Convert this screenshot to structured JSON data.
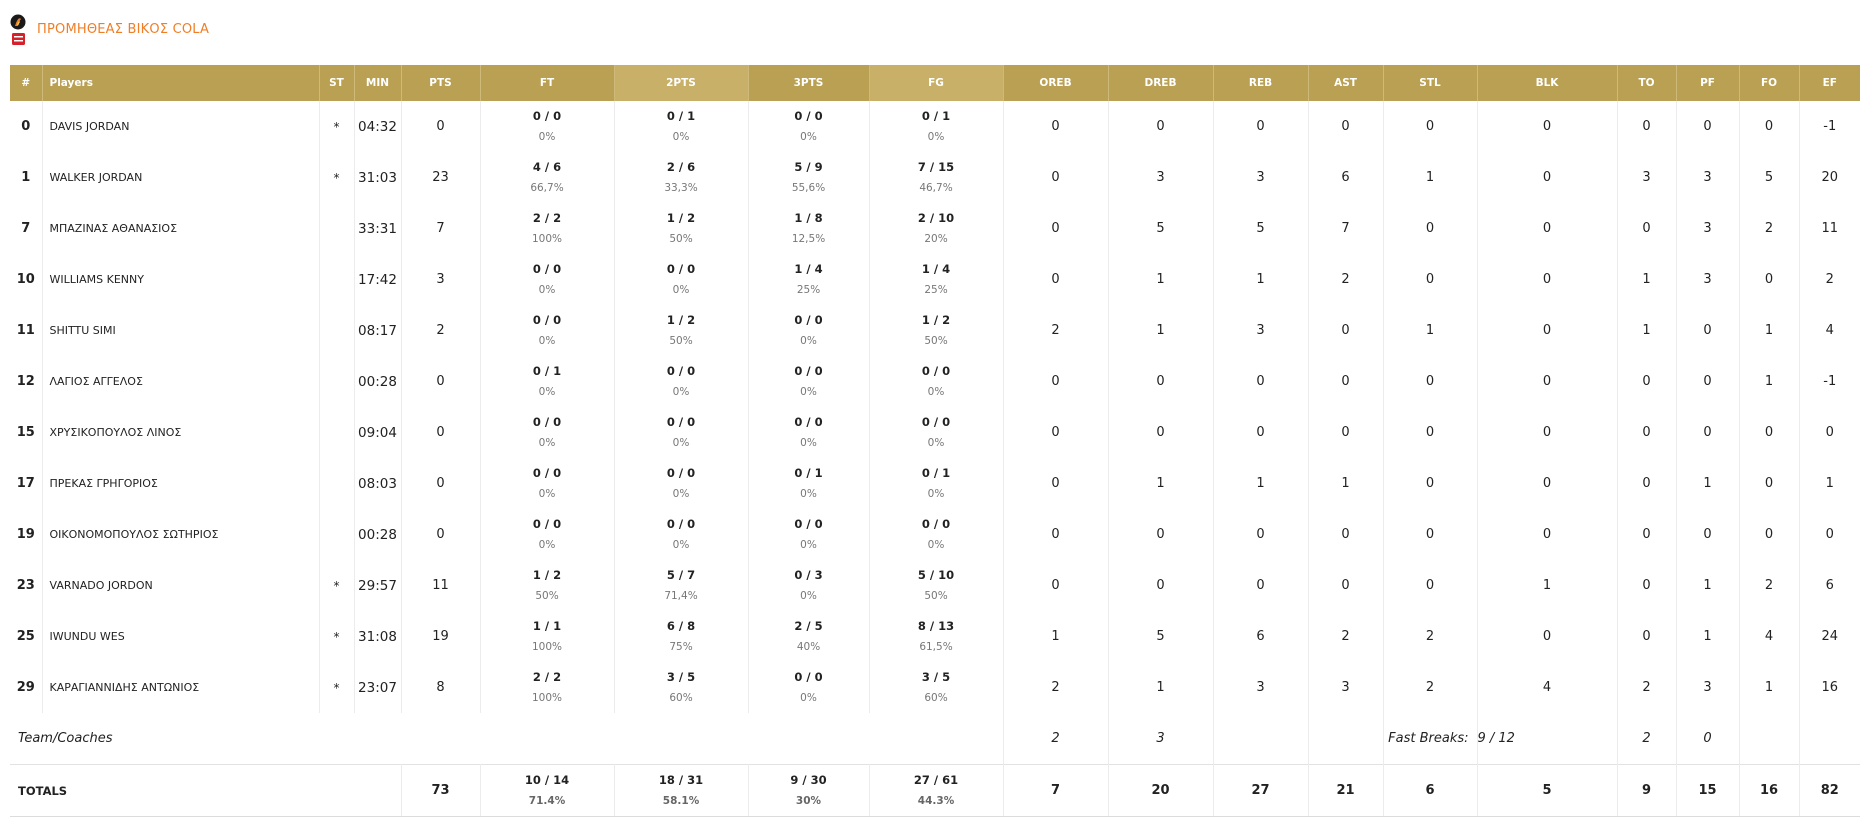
{
  "team": {
    "name": "ΠΡΟΜΗΘΕΑΣ ΒΙΚΟΣ COLA",
    "logo_icon": "team-logo-icon"
  },
  "colors": {
    "header_bg": "#b9a053",
    "header_alt_bg": "#c8b068",
    "team_name": "#f07e26"
  },
  "columns": [
    "#",
    "Players",
    "ST",
    "MIN",
    "PTS",
    "FT",
    "2PTS",
    "3PTS",
    "FG",
    "OREB",
    "DREB",
    "REB",
    "AST",
    "STL",
    "BLK",
    "TO",
    "PF",
    "FO",
    "EF"
  ],
  "players": [
    {
      "num": "0",
      "name": "DAVIS JORDAN",
      "st": "*",
      "min": "04:32",
      "pts": "0",
      "ft": "0 / 0",
      "ft_pct": "0%",
      "p2": "0 / 1",
      "p2_pct": "0%",
      "p3": "0 / 0",
      "p3_pct": "0%",
      "fg": "0 / 1",
      "fg_pct": "0%",
      "oreb": "0",
      "dreb": "0",
      "reb": "0",
      "ast": "0",
      "stl": "0",
      "blk": "0",
      "to": "0",
      "pf": "0",
      "fo": "0",
      "ef": "-1"
    },
    {
      "num": "1",
      "name": "WALKER JORDAN",
      "st": "*",
      "min": "31:03",
      "pts": "23",
      "ft": "4 / 6",
      "ft_pct": "66,7%",
      "p2": "2 / 6",
      "p2_pct": "33,3%",
      "p3": "5 / 9",
      "p3_pct": "55,6%",
      "fg": "7 / 15",
      "fg_pct": "46,7%",
      "oreb": "0",
      "dreb": "3",
      "reb": "3",
      "ast": "6",
      "stl": "1",
      "blk": "0",
      "to": "3",
      "pf": "3",
      "fo": "5",
      "ef": "20"
    },
    {
      "num": "7",
      "name": "ΜΠΑΖΙΝΑΣ ΑΘΑΝΑΣΙΟΣ",
      "st": "",
      "min": "33:31",
      "pts": "7",
      "ft": "2 / 2",
      "ft_pct": "100%",
      "p2": "1 / 2",
      "p2_pct": "50%",
      "p3": "1 / 8",
      "p3_pct": "12,5%",
      "fg": "2 / 10",
      "fg_pct": "20%",
      "oreb": "0",
      "dreb": "5",
      "reb": "5",
      "ast": "7",
      "stl": "0",
      "blk": "0",
      "to": "0",
      "pf": "3",
      "fo": "2",
      "ef": "11"
    },
    {
      "num": "10",
      "name": "WILLIAMS KENNY",
      "st": "",
      "min": "17:42",
      "pts": "3",
      "ft": "0 / 0",
      "ft_pct": "0%",
      "p2": "0 / 0",
      "p2_pct": "0%",
      "p3": "1 / 4",
      "p3_pct": "25%",
      "fg": "1 / 4",
      "fg_pct": "25%",
      "oreb": "0",
      "dreb": "1",
      "reb": "1",
      "ast": "2",
      "stl": "0",
      "blk": "0",
      "to": "1",
      "pf": "3",
      "fo": "0",
      "ef": "2"
    },
    {
      "num": "11",
      "name": "SHITTU SIMI",
      "st": "",
      "min": "08:17",
      "pts": "2",
      "ft": "0 / 0",
      "ft_pct": "0%",
      "p2": "1 / 2",
      "p2_pct": "50%",
      "p3": "0 / 0",
      "p3_pct": "0%",
      "fg": "1 / 2",
      "fg_pct": "50%",
      "oreb": "2",
      "dreb": "1",
      "reb": "3",
      "ast": "0",
      "stl": "1",
      "blk": "0",
      "to": "1",
      "pf": "0",
      "fo": "1",
      "ef": "4"
    },
    {
      "num": "12",
      "name": "ΛΑΓΙΟΣ ΑΓΓΕΛΟΣ",
      "st": "",
      "min": "00:28",
      "pts": "0",
      "ft": "0 / 1",
      "ft_pct": "0%",
      "p2": "0 / 0",
      "p2_pct": "0%",
      "p3": "0 / 0",
      "p3_pct": "0%",
      "fg": "0 / 0",
      "fg_pct": "0%",
      "oreb": "0",
      "dreb": "0",
      "reb": "0",
      "ast": "0",
      "stl": "0",
      "blk": "0",
      "to": "0",
      "pf": "0",
      "fo": "1",
      "ef": "-1"
    },
    {
      "num": "15",
      "name": "ΧΡΥΣΙΚΟΠΟΥΛΟΣ ΛΙΝΟΣ",
      "st": "",
      "min": "09:04",
      "pts": "0",
      "ft": "0 / 0",
      "ft_pct": "0%",
      "p2": "0 / 0",
      "p2_pct": "0%",
      "p3": "0 / 0",
      "p3_pct": "0%",
      "fg": "0 / 0",
      "fg_pct": "0%",
      "oreb": "0",
      "dreb": "0",
      "reb": "0",
      "ast": "0",
      "stl": "0",
      "blk": "0",
      "to": "0",
      "pf": "0",
      "fo": "0",
      "ef": "0"
    },
    {
      "num": "17",
      "name": "ΠΡΕΚΑΣ ΓΡΗΓΟΡΙΟΣ",
      "st": "",
      "min": "08:03",
      "pts": "0",
      "ft": "0 / 0",
      "ft_pct": "0%",
      "p2": "0 / 0",
      "p2_pct": "0%",
      "p3": "0 / 1",
      "p3_pct": "0%",
      "fg": "0 / 1",
      "fg_pct": "0%",
      "oreb": "0",
      "dreb": "1",
      "reb": "1",
      "ast": "1",
      "stl": "0",
      "blk": "0",
      "to": "0",
      "pf": "1",
      "fo": "0",
      "ef": "1"
    },
    {
      "num": "19",
      "name": "ΟΙΚΟΝΟΜΟΠΟΥΛΟΣ ΣΩΤΗΡΙΟΣ",
      "st": "",
      "min": "00:28",
      "pts": "0",
      "ft": "0 / 0",
      "ft_pct": "0%",
      "p2": "0 / 0",
      "p2_pct": "0%",
      "p3": "0 / 0",
      "p3_pct": "0%",
      "fg": "0 / 0",
      "fg_pct": "0%",
      "oreb": "0",
      "dreb": "0",
      "reb": "0",
      "ast": "0",
      "stl": "0",
      "blk": "0",
      "to": "0",
      "pf": "0",
      "fo": "0",
      "ef": "0"
    },
    {
      "num": "23",
      "name": "VARNADO JORDON",
      "st": "*",
      "min": "29:57",
      "pts": "11",
      "ft": "1 / 2",
      "ft_pct": "50%",
      "p2": "5 / 7",
      "p2_pct": "71,4%",
      "p3": "0 / 3",
      "p3_pct": "0%",
      "fg": "5 / 10",
      "fg_pct": "50%",
      "oreb": "0",
      "dreb": "0",
      "reb": "0",
      "ast": "0",
      "stl": "0",
      "blk": "1",
      "to": "0",
      "pf": "1",
      "fo": "2",
      "ef": "6"
    },
    {
      "num": "25",
      "name": "IWUNDU WES",
      "st": "*",
      "min": "31:08",
      "pts": "19",
      "ft": "1 / 1",
      "ft_pct": "100%",
      "p2": "6 / 8",
      "p2_pct": "75%",
      "p3": "2 / 5",
      "p3_pct": "40%",
      "fg": "8 / 13",
      "fg_pct": "61,5%",
      "oreb": "1",
      "dreb": "5",
      "reb": "6",
      "ast": "2",
      "stl": "2",
      "blk": "0",
      "to": "0",
      "pf": "1",
      "fo": "4",
      "ef": "24"
    },
    {
      "num": "29",
      "name": "ΚΑΡΑΓΙΑΝΝΙΔΗΣ ΑΝΤΩΝΙΟΣ",
      "st": "*",
      "min": "23:07",
      "pts": "8",
      "ft": "2 / 2",
      "ft_pct": "100%",
      "p2": "3 / 5",
      "p2_pct": "60%",
      "p3": "0 / 0",
      "p3_pct": "0%",
      "fg": "3 / 5",
      "fg_pct": "60%",
      "oreb": "2",
      "dreb": "1",
      "reb": "3",
      "ast": "3",
      "stl": "2",
      "blk": "4",
      "to": "2",
      "pf": "3",
      "fo": "1",
      "ef": "16"
    }
  ],
  "team_coaches": {
    "label": "Team/Coaches",
    "oreb": "2",
    "dreb": "3",
    "fast_breaks_label": "Fast Breaks:",
    "fast_breaks": "9 / 12",
    "to": "2",
    "pf": "0"
  },
  "totals": {
    "label": "TOTALS",
    "pts": "73",
    "ft": "10 / 14",
    "ft_pct": "71.4%",
    "p2": "18 / 31",
    "p2_pct": "58.1%",
    "p3": "9 / 30",
    "p3_pct": "30%",
    "fg": "27 / 61",
    "fg_pct": "44.3%",
    "oreb": "7",
    "dreb": "20",
    "reb": "27",
    "ast": "21",
    "stl": "6",
    "blk": "5",
    "to": "9",
    "pf": "15",
    "fo": "16",
    "ef": "82"
  }
}
